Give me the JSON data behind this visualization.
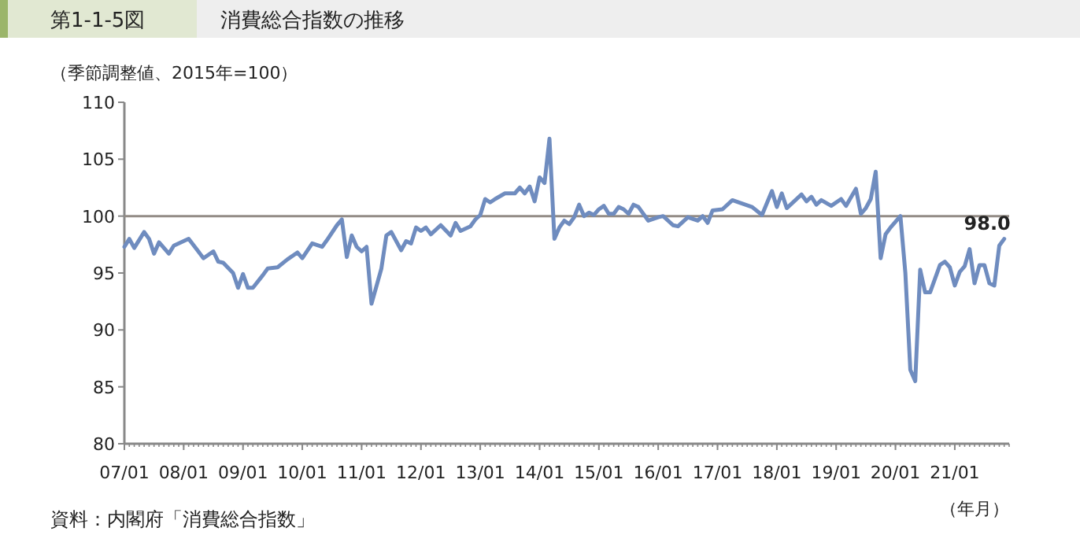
{
  "chart_data": {
    "type": "line",
    "title": "第1-1-5図",
    "subtitle": "消費総合指数の推移",
    "ylabel": "（季節調整値、2015年=100）",
    "xlabel": "（年月）",
    "annotations": [
      {
        "text": "98.0",
        "x": "2021-11",
        "y": 98.0
      },
      "資料：内閣府「消費総合指数」"
    ],
    "ylim": [
      80,
      110
    ],
    "yticks": [
      80,
      85,
      90,
      95,
      100,
      105,
      110
    ],
    "xlim": [
      "2007-01",
      "2021-12"
    ],
    "xticks": [
      {
        "value": "2007-01",
        "label": "07/01"
      },
      {
        "value": "2008-01",
        "label": "08/01"
      },
      {
        "value": "2009-01",
        "label": "09/01"
      },
      {
        "value": "2010-01",
        "label": "10/01"
      },
      {
        "value": "2011-01",
        "label": "11/01"
      },
      {
        "value": "2012-01",
        "label": "12/01"
      },
      {
        "value": "2013-01",
        "label": "13/01"
      },
      {
        "value": "2014-01",
        "label": "14/01"
      },
      {
        "value": "2015-01",
        "label": "15/01"
      },
      {
        "value": "2016-01",
        "label": "16/01"
      },
      {
        "value": "2017-01",
        "label": "17/01"
      },
      {
        "value": "2018-01",
        "label": "18/01"
      },
      {
        "value": "2019-01",
        "label": "19/01"
      },
      {
        "value": "2020-01",
        "label": "20/01"
      },
      {
        "value": "2021-01",
        "label": "21/01"
      }
    ],
    "ref_lines": [
      {
        "axis": "y",
        "value": 100,
        "color": "#938c86"
      }
    ],
    "grid": false,
    "marker": "none",
    "line_style": "solid",
    "x": [
      "2007-01",
      "2007-02",
      "2007-03",
      "2007-05",
      "2007-06",
      "2007-07",
      "2007-08",
      "2007-10",
      "2007-11",
      "2008-02",
      "2008-05",
      "2008-07",
      "2008-08",
      "2008-09",
      "2008-11",
      "2008-12",
      "2009-01",
      "2009-02",
      "2009-03",
      "2009-05",
      "2009-06",
      "2009-08",
      "2009-10",
      "2009-12",
      "2010-01",
      "2010-03",
      "2010-05",
      "2010-06",
      "2010-08",
      "2010-09",
      "2010-10",
      "2010-11",
      "2010-12",
      "2011-01",
      "2011-02",
      "2011-03",
      "2011-05",
      "2011-06",
      "2011-07",
      "2011-09",
      "2011-10",
      "2011-11",
      "2011-12",
      "2012-01",
      "2012-02",
      "2012-03",
      "2012-05",
      "2012-07",
      "2012-08",
      "2012-09",
      "2012-11",
      "2012-12",
      "2013-01",
      "2013-02",
      "2013-03",
      "2013-04",
      "2013-06",
      "2013-08",
      "2013-09",
      "2013-10",
      "2013-11",
      "2013-12",
      "2014-01",
      "2014-02",
      "2014-03",
      "2014-04",
      "2014-05",
      "2014-06",
      "2014-07",
      "2014-08",
      "2014-09",
      "2014-10",
      "2014-11",
      "2014-12",
      "2015-01",
      "2015-02",
      "2015-03",
      "2015-04",
      "2015-05",
      "2015-06",
      "2015-07",
      "2015-08",
      "2015-09",
      "2015-11",
      "2016-01",
      "2016-02",
      "2016-04",
      "2016-05",
      "2016-07",
      "2016-09",
      "2016-10",
      "2016-11",
      "2016-12",
      "2017-02",
      "2017-04",
      "2017-08",
      "2017-10",
      "2017-12",
      "2018-01",
      "2018-02",
      "2018-03",
      "2018-06",
      "2018-07",
      "2018-08",
      "2018-09",
      "2018-10",
      "2018-12",
      "2019-02",
      "2019-03",
      "2019-05",
      "2019-06",
      "2019-07",
      "2019-08",
      "2019-09",
      "2019-10",
      "2019-11",
      "2019-12",
      "2020-02",
      "2020-03",
      "2020-04",
      "2020-05",
      "2020-06",
      "2020-07",
      "2020-08",
      "2020-10",
      "2020-11",
      "2020-12",
      "2021-01",
      "2021-02",
      "2021-03",
      "2021-04",
      "2021-05",
      "2021-06",
      "2021-07",
      "2021-08",
      "2021-09",
      "2021-10",
      "2021-11"
    ],
    "series": [
      {
        "color": "#6f8cbf",
        "values": [
          97.3,
          98.0,
          97.2,
          98.6,
          98.0,
          96.7,
          97.7,
          96.7,
          97.4,
          98.0,
          96.3,
          96.9,
          96.0,
          95.9,
          95.0,
          93.7,
          94.9,
          93.7,
          93.7,
          94.8,
          95.4,
          95.5,
          96.2,
          96.8,
          96.3,
          97.6,
          97.3,
          97.9,
          99.2,
          99.7,
          96.4,
          98.3,
          97.3,
          96.9,
          97.3,
          92.3,
          95.4,
          98.3,
          98.6,
          97.0,
          97.8,
          97.6,
          99.0,
          98.7,
          99.0,
          98.4,
          99.2,
          98.3,
          99.4,
          98.7,
          99.1,
          99.7,
          100.1,
          101.5,
          101.2,
          101.5,
          102.0,
          102.0,
          102.5,
          102.0,
          102.6,
          101.3,
          103.4,
          102.9,
          106.8,
          98.0,
          99.0,
          99.6,
          99.3,
          99.9,
          101.0,
          100.0,
          100.3,
          100.1,
          100.6,
          100.9,
          100.2,
          100.2,
          100.8,
          100.6,
          100.2,
          101.0,
          100.8,
          99.6,
          99.9,
          100.0,
          99.2,
          99.1,
          99.9,
          99.6,
          100.0,
          99.4,
          100.5,
          100.6,
          101.4,
          100.8,
          100.1,
          102.2,
          100.8,
          102.0,
          100.7,
          101.9,
          101.3,
          101.7,
          101.0,
          101.4,
          100.9,
          101.5,
          100.9,
          102.4,
          100.2,
          100.7,
          101.5,
          103.9,
          96.3,
          98.4,
          99.0,
          100.0,
          95.0,
          86.5,
          85.5,
          95.3,
          93.3,
          93.3,
          95.7,
          96.0,
          95.5,
          93.9,
          95.1,
          95.6,
          97.1,
          94.1,
          95.7,
          95.7,
          94.1,
          93.9,
          97.4,
          98.0
        ]
      }
    ]
  }
}
